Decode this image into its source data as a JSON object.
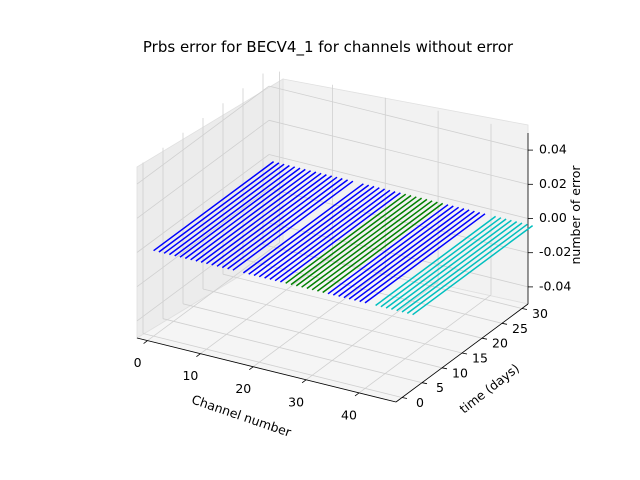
{
  "chart_data": {
    "type": "line",
    "projection": "3d",
    "title": "Prbs error for BECV4_1 for channels without error",
    "xlabel": "Channel number",
    "ylabel": "time (days)",
    "zlabel": "number of error",
    "xlim": [
      -2,
      47
    ],
    "ylim": [
      -1.5,
      31.5
    ],
    "zlim": [
      -0.05,
      0.05
    ],
    "x_ticks": [
      0,
      10,
      20,
      30,
      40
    ],
    "y_ticks": [
      0,
      5,
      10,
      15,
      20,
      25,
      30
    ],
    "z_ticks": [
      "-0.04",
      "-0.02",
      "0.00",
      "0.02",
      "0.04"
    ],
    "grid": true,
    "time_range": [
      0,
      30
    ],
    "error_value": 0,
    "series": [
      {
        "color": "#0000ff",
        "channels": [
          0,
          1,
          2,
          3,
          4,
          5,
          6,
          7,
          8,
          9,
          10,
          11,
          12,
          13,
          14,
          15
        ]
      },
      {
        "color": "#0000ff",
        "channels": [
          17,
          18,
          19,
          20,
          21,
          22,
          23,
          24
        ]
      },
      {
        "color": "#008000",
        "channels": [
          25,
          26,
          27,
          28,
          29,
          30,
          31,
          32
        ]
      },
      {
        "color": "#0000ff",
        "channels": [
          33,
          34,
          35,
          36,
          37,
          38,
          39,
          40
        ]
      },
      {
        "color": "#00bfbf",
        "channels": [
          42,
          43,
          44,
          45,
          46,
          47,
          48,
          49
        ]
      }
    ]
  }
}
